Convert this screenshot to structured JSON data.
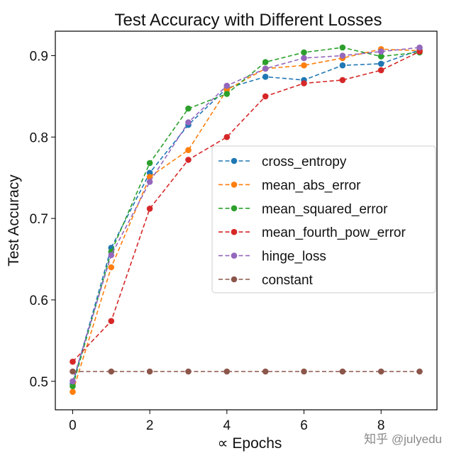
{
  "chart_data": {
    "type": "line",
    "title": "Test Accuracy with Different Losses",
    "xlabel": "∝ Epochs",
    "ylabel": "Test Accuracy",
    "xlim": [
      -0.45,
      9.45
    ],
    "ylim": [
      0.465,
      0.93
    ],
    "xticks": [
      0,
      2,
      4,
      6,
      8
    ],
    "yticks": [
      0.5,
      0.6,
      0.7,
      0.8,
      0.9
    ],
    "grid": false,
    "legend_position": "center-right",
    "x": [
      0,
      1,
      2,
      3,
      4,
      5,
      6,
      7,
      8,
      9
    ],
    "series": [
      {
        "name": "cross_entropy",
        "color": "#1f77b4",
        "values": [
          0.497,
          0.664,
          0.756,
          0.815,
          0.86,
          0.874,
          0.87,
          0.888,
          0.89,
          0.907
        ]
      },
      {
        "name": "mean_abs_error",
        "color": "#ff7f0e",
        "values": [
          0.487,
          0.64,
          0.751,
          0.784,
          0.858,
          0.884,
          0.888,
          0.897,
          0.908,
          0.906
        ]
      },
      {
        "name": "mean_squared_error",
        "color": "#2ca02c",
        "values": [
          0.494,
          0.659,
          0.768,
          0.835,
          0.853,
          0.892,
          0.904,
          0.91,
          0.899,
          0.904
        ]
      },
      {
        "name": "mean_fourth_pow_error",
        "color": "#d62728",
        "values": [
          0.524,
          0.574,
          0.712,
          0.772,
          0.8,
          0.85,
          0.866,
          0.87,
          0.882,
          0.905
        ]
      },
      {
        "name": "hinge_loss",
        "color": "#9467bd",
        "values": [
          0.5,
          0.655,
          0.745,
          0.818,
          0.863,
          0.884,
          0.897,
          0.9,
          0.905,
          0.91
        ]
      },
      {
        "name": "constant",
        "color": "#8c564b",
        "values": [
          0.512,
          0.512,
          0.512,
          0.512,
          0.512,
          0.512,
          0.512,
          0.512,
          0.512,
          0.512
        ]
      }
    ]
  },
  "watermark": "知乎 @julyedu"
}
